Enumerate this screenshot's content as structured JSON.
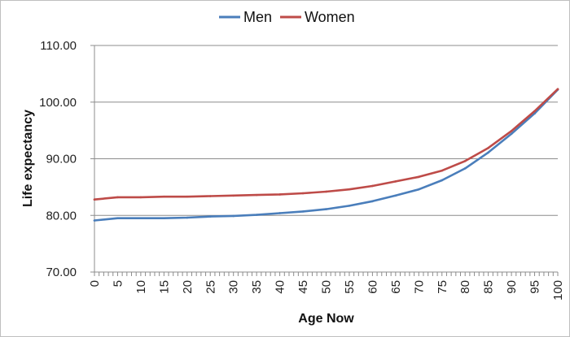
{
  "chart_data": {
    "type": "line",
    "title": "",
    "xlabel": "Age Now",
    "ylabel": "Life expectancy",
    "xlim": [
      0,
      100
    ],
    "ylim": [
      70,
      110
    ],
    "x_ticks": [
      0,
      5,
      10,
      15,
      20,
      25,
      30,
      35,
      40,
      45,
      50,
      55,
      60,
      65,
      70,
      75,
      80,
      85,
      90,
      95,
      100
    ],
    "y_ticks": [
      "70.00",
      "80.00",
      "90.00",
      "100.00",
      "110.00"
    ],
    "grid": "horizontal",
    "legend_position": "top",
    "x": [
      0,
      5,
      10,
      15,
      20,
      25,
      30,
      35,
      40,
      45,
      50,
      55,
      60,
      65,
      70,
      75,
      80,
      85,
      90,
      95,
      100
    ],
    "series": [
      {
        "name": "Men",
        "color": "#4a7ebb",
        "values": [
          79.1,
          79.5,
          79.5,
          79.5,
          79.6,
          79.8,
          79.9,
          80.1,
          80.4,
          80.7,
          81.1,
          81.7,
          82.5,
          83.5,
          84.6,
          86.2,
          88.3,
          91.1,
          94.4,
          98.0,
          102.2
        ]
      },
      {
        "name": "Women",
        "color": "#be4b48",
        "values": [
          82.8,
          83.2,
          83.2,
          83.3,
          83.3,
          83.4,
          83.5,
          83.6,
          83.7,
          83.9,
          84.2,
          84.6,
          85.2,
          86.0,
          86.8,
          87.9,
          89.6,
          91.9,
          94.9,
          98.4,
          102.3
        ]
      }
    ]
  }
}
